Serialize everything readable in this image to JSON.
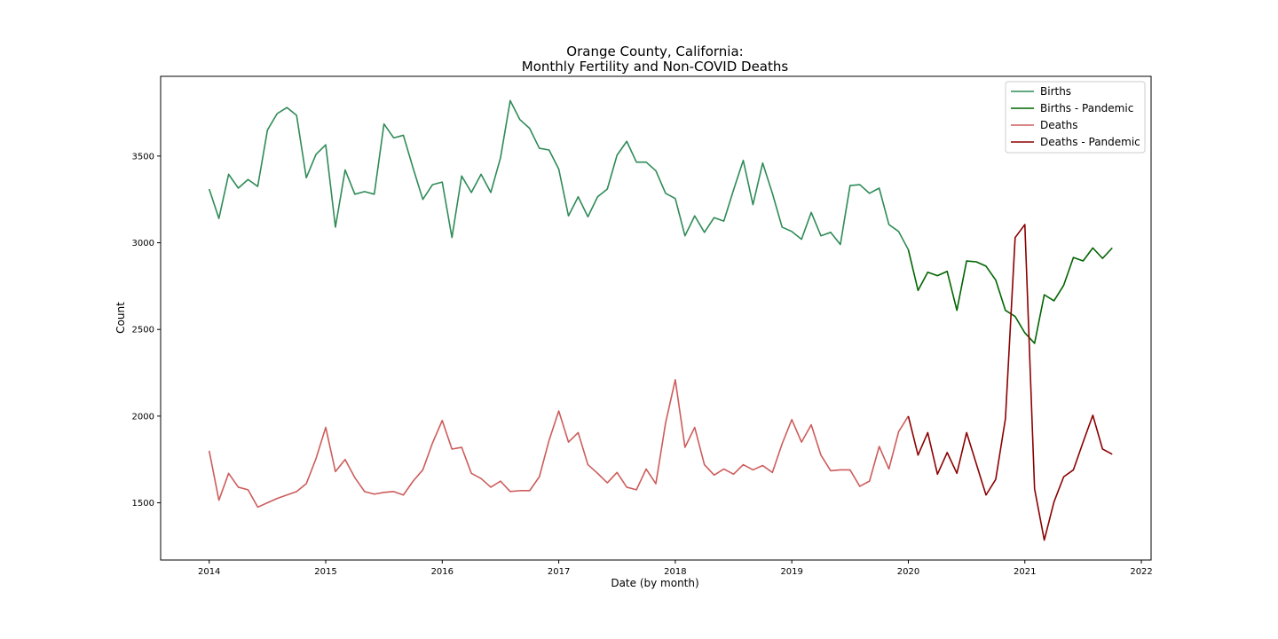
{
  "chart_data": {
    "type": "line",
    "title_line1": "Orange County, California:",
    "title_line2": "Monthly Fertility and Non-COVID Deaths",
    "xlabel": "Date (by month)",
    "ylabel": "Count",
    "xlim": [
      "2013-08",
      "2022-02"
    ],
    "ylim": [
      1170,
      3960
    ],
    "x_ticks": [
      "2014",
      "2015",
      "2016",
      "2017",
      "2018",
      "2019",
      "2020",
      "2021",
      "2022"
    ],
    "y_ticks": [
      1500,
      2000,
      2500,
      3000,
      3500
    ],
    "legend_position": "top-right",
    "series": [
      {
        "name": "Births",
        "color": "#2e8b57",
        "x": [
          "2014-01",
          "2014-02",
          "2014-03",
          "2014-04",
          "2014-05",
          "2014-06",
          "2014-07",
          "2014-08",
          "2014-09",
          "2014-10",
          "2014-11",
          "2014-12",
          "2015-01",
          "2015-02",
          "2015-03",
          "2015-04",
          "2015-05",
          "2015-06",
          "2015-07",
          "2015-08",
          "2015-09",
          "2015-10",
          "2015-11",
          "2015-12",
          "2016-01",
          "2016-02",
          "2016-03",
          "2016-04",
          "2016-05",
          "2016-06",
          "2016-07",
          "2016-08",
          "2016-09",
          "2016-10",
          "2016-11",
          "2016-12",
          "2017-01",
          "2017-02",
          "2017-03",
          "2017-04",
          "2017-05",
          "2017-06",
          "2017-07",
          "2017-08",
          "2017-09",
          "2017-10",
          "2017-11",
          "2017-12",
          "2018-01",
          "2018-02",
          "2018-03",
          "2018-04",
          "2018-05",
          "2018-06",
          "2018-07",
          "2018-08",
          "2018-09",
          "2018-10",
          "2018-11",
          "2018-12",
          "2019-01",
          "2019-02",
          "2019-03",
          "2019-04",
          "2019-05",
          "2019-06",
          "2019-07",
          "2019-08",
          "2019-09",
          "2019-10",
          "2019-11",
          "2019-12",
          "2020-01"
        ],
        "values": [
          3310,
          3140,
          3395,
          3315,
          3365,
          3325,
          3650,
          3745,
          3780,
          3735,
          3375,
          3510,
          3565,
          3090,
          3420,
          3280,
          3295,
          3280,
          3685,
          3605,
          3620,
          3430,
          3250,
          3335,
          3350,
          3030,
          3385,
          3290,
          3395,
          3290,
          3490,
          3820,
          3710,
          3660,
          3545,
          3535,
          3425,
          3155,
          3265,
          3150,
          3265,
          3310,
          3505,
          3585,
          3465,
          3465,
          3415,
          3285,
          3255,
          3040,
          3155,
          3060,
          3145,
          3125,
          3305,
          3475,
          3220,
          3460,
          3285,
          3090,
          3065,
          3020,
          3175,
          3040,
          3060,
          2990,
          3330,
          3335,
          3285,
          3315,
          3105,
          3065,
          2960
        ]
      },
      {
        "name": "Births - Pandemic",
        "color": "#006400",
        "x": [
          "2020-01",
          "2020-02",
          "2020-03",
          "2020-04",
          "2020-05",
          "2020-06",
          "2020-07",
          "2020-08",
          "2020-09",
          "2020-10",
          "2020-11",
          "2020-12",
          "2021-01",
          "2021-02",
          "2021-03",
          "2021-04",
          "2021-05",
          "2021-06",
          "2021-07",
          "2021-08",
          "2021-09",
          "2021-10"
        ],
        "values": [
          2960,
          2725,
          2830,
          2810,
          2835,
          2610,
          2895,
          2890,
          2865,
          2785,
          2610,
          2575,
          2480,
          2420,
          2700,
          2665,
          2755,
          2915,
          2895,
          2970,
          2910,
          2970
        ]
      },
      {
        "name": "Deaths",
        "color": "#cd5c5c",
        "x": [
          "2014-01",
          "2014-02",
          "2014-03",
          "2014-04",
          "2014-05",
          "2014-06",
          "2014-07",
          "2014-08",
          "2014-09",
          "2014-10",
          "2014-11",
          "2014-12",
          "2015-01",
          "2015-02",
          "2015-03",
          "2015-04",
          "2015-05",
          "2015-06",
          "2015-07",
          "2015-08",
          "2015-09",
          "2015-10",
          "2015-11",
          "2015-12",
          "2016-01",
          "2016-02",
          "2016-03",
          "2016-04",
          "2016-05",
          "2016-06",
          "2016-07",
          "2016-08",
          "2016-09",
          "2016-10",
          "2016-11",
          "2016-12",
          "2017-01",
          "2017-02",
          "2017-03",
          "2017-04",
          "2017-05",
          "2017-06",
          "2017-07",
          "2017-08",
          "2017-09",
          "2017-10",
          "2017-11",
          "2017-12",
          "2018-01",
          "2018-02",
          "2018-03",
          "2018-04",
          "2018-05",
          "2018-06",
          "2018-07",
          "2018-08",
          "2018-09",
          "2018-10",
          "2018-11",
          "2018-12",
          "2019-01",
          "2019-02",
          "2019-03",
          "2019-04",
          "2019-05",
          "2019-06",
          "2019-07",
          "2019-08",
          "2019-09",
          "2019-10",
          "2019-11",
          "2019-12",
          "2020-01"
        ],
        "values": [
          1800,
          1515,
          1670,
          1590,
          1575,
          1475,
          1500,
          1525,
          1545,
          1565,
          1610,
          1755,
          1935,
          1680,
          1750,
          1645,
          1565,
          1550,
          1560,
          1565,
          1545,
          1625,
          1690,
          1845,
          1975,
          1810,
          1820,
          1670,
          1640,
          1590,
          1625,
          1565,
          1570,
          1570,
          1650,
          1860,
          2030,
          1850,
          1905,
          1720,
          1670,
          1615,
          1675,
          1590,
          1575,
          1695,
          1610,
          1960,
          2210,
          1820,
          1935,
          1720,
          1660,
          1695,
          1665,
          1720,
          1690,
          1715,
          1675,
          1840,
          1980,
          1850,
          1950,
          1775,
          1685,
          1690,
          1690,
          1595,
          1625,
          1825,
          1695,
          1910,
          2000
        ]
      },
      {
        "name": "Deaths - Pandemic",
        "color": "#8b0000",
        "x": [
          "2020-01",
          "2020-02",
          "2020-03",
          "2020-04",
          "2020-05",
          "2020-06",
          "2020-07",
          "2020-08",
          "2020-09",
          "2020-10",
          "2020-11",
          "2020-12",
          "2021-01",
          "2021-02",
          "2021-03",
          "2021-04",
          "2021-05",
          "2021-06",
          "2021-07",
          "2021-08",
          "2021-09",
          "2021-10"
        ],
        "values": [
          2000,
          1775,
          1905,
          1665,
          1790,
          1670,
          1905,
          1725,
          1545,
          1635,
          1985,
          3030,
          3105,
          1580,
          1285,
          1505,
          1650,
          1690,
          1850,
          2005,
          1810,
          1780
        ]
      }
    ]
  }
}
